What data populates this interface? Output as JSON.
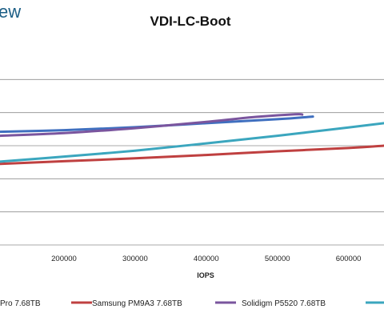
{
  "logo_text": "ew",
  "chart_data": {
    "type": "line",
    "title": "VDI-LC-Boot",
    "xlabel": "IOPS",
    "ylabel": "",
    "xlim": [
      110000,
      650000
    ],
    "x_ticks": [
      200000,
      300000,
      400000,
      500000,
      600000
    ],
    "ylim": [
      0,
      6
    ],
    "y_gridlines": [
      1,
      2,
      3,
      4,
      5
    ],
    "grid": true,
    "legend_position": "bottom",
    "series": [
      {
        "name": "Pro 7.68TB",
        "color": "#3f6fbf",
        "points": [
          [
            110000,
            3.42
          ],
          [
            200000,
            3.47
          ],
          [
            300000,
            3.56
          ],
          [
            400000,
            3.68
          ],
          [
            500000,
            3.8
          ],
          [
            550000,
            3.88
          ]
        ]
      },
      {
        "name": "Samsung PM9A3 7.68TB",
        "color": "#bf4040",
        "points": [
          [
            110000,
            2.45
          ],
          [
            200000,
            2.53
          ],
          [
            300000,
            2.62
          ],
          [
            400000,
            2.72
          ],
          [
            500000,
            2.83
          ],
          [
            600000,
            2.93
          ],
          [
            650000,
            3.0
          ]
        ]
      },
      {
        "name": "Solidigm P5520 7.68TB",
        "color": "#7a559e",
        "points": [
          [
            110000,
            3.3
          ],
          [
            200000,
            3.38
          ],
          [
            300000,
            3.53
          ],
          [
            400000,
            3.72
          ],
          [
            470000,
            3.87
          ],
          [
            525000,
            3.95
          ],
          [
            535000,
            3.94
          ]
        ]
      },
      {
        "name": "",
        "color": "#3ba6be",
        "points": [
          [
            110000,
            2.52
          ],
          [
            200000,
            2.67
          ],
          [
            300000,
            2.85
          ],
          [
            400000,
            3.07
          ],
          [
            500000,
            3.3
          ],
          [
            600000,
            3.55
          ],
          [
            650000,
            3.68
          ]
        ]
      }
    ]
  }
}
